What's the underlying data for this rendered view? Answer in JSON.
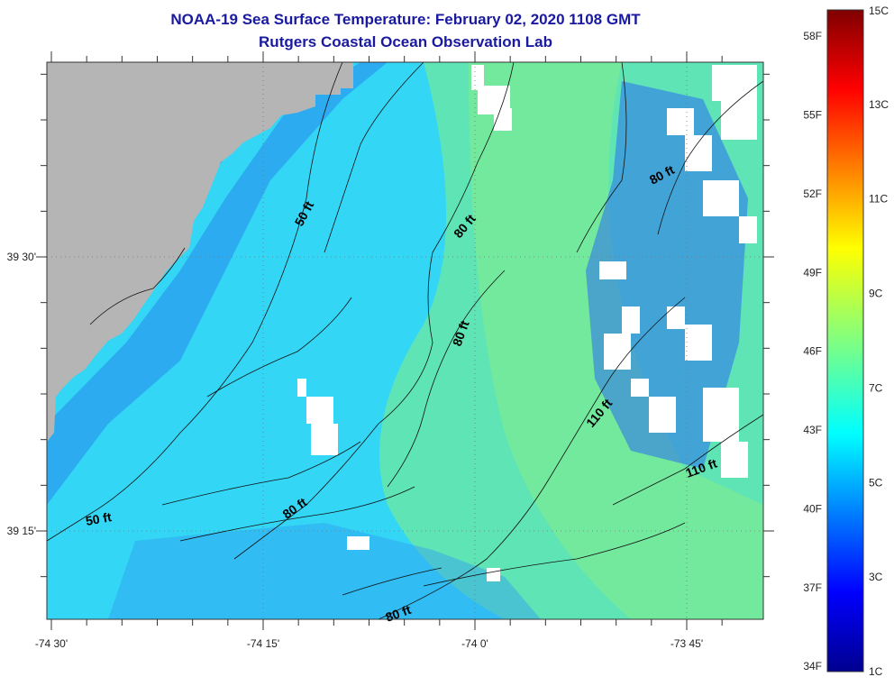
{
  "title": {
    "line1": "NOAA-19 Sea Surface Temperature:  February 02, 2020 1108 GMT",
    "line2": "Rutgers Coastal Ocean Observation Lab"
  },
  "axes": {
    "x_ticks": [
      {
        "lon": -74.5,
        "label": "-74 30'"
      },
      {
        "lon": -74.25,
        "label": "-74 15'"
      },
      {
        "lon": -74.0,
        "label": "-74 0'"
      },
      {
        "lon": -73.75,
        "label": "-73 45'"
      }
    ],
    "y_ticks": [
      {
        "lat": 39.5,
        "label": "39 30'"
      },
      {
        "lat": 39.25,
        "label": "39 15'"
      }
    ]
  },
  "contour_labels": [
    {
      "text": "50 ft"
    },
    {
      "text": "80 ft"
    },
    {
      "text": "80 ft"
    },
    {
      "text": "80 ft"
    },
    {
      "text": "80 ft"
    },
    {
      "text": "110 ft"
    },
    {
      "text": "110 ft"
    },
    {
      "text": "50 ft"
    },
    {
      "text": "80 ft"
    }
  ],
  "colorbar": {
    "fahrenheit": [
      "58F",
      "55F",
      "52F",
      "49F",
      "46F",
      "43F",
      "40F",
      "37F",
      "34F"
    ],
    "celsius": [
      "15C",
      "13C",
      "11C",
      "9C",
      "7C",
      "5C",
      "3C",
      "1C"
    ],
    "range_c": [
      1,
      15
    ]
  },
  "colors": {
    "land": "#b5b5b5",
    "cloud": "#ffffff",
    "title": "#1a1aa0"
  }
}
